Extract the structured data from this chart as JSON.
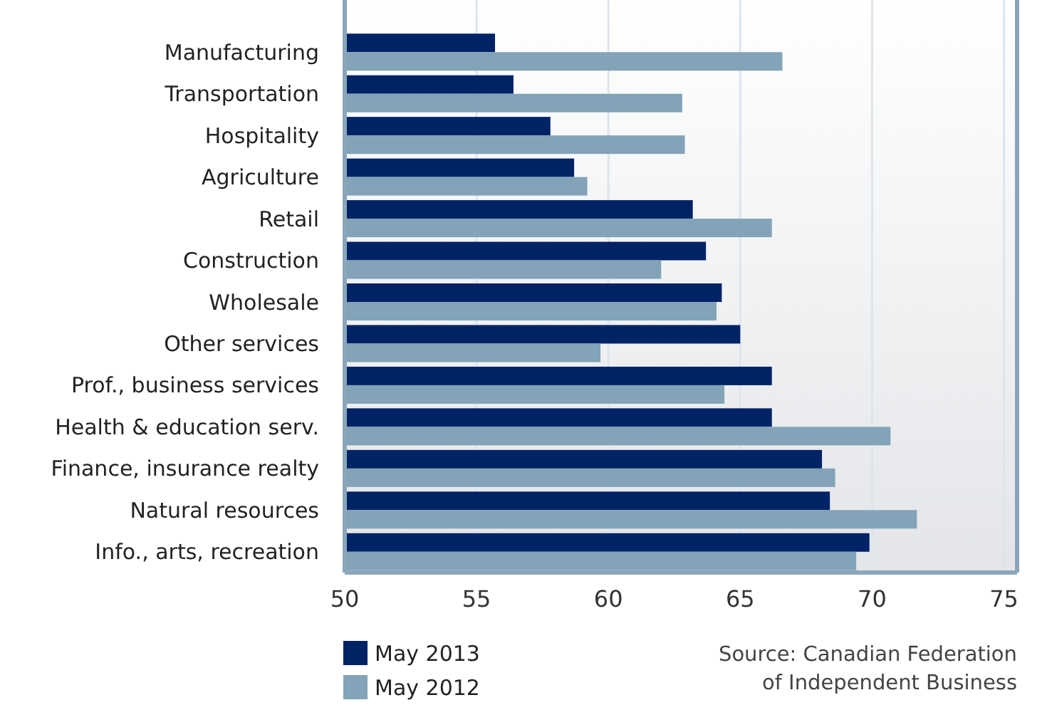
{
  "chart_data": {
    "type": "bar",
    "orientation": "horizontal",
    "categories": [
      "Manufacturing",
      "Transportation",
      "Hospitality",
      "Agriculture",
      "Retail",
      "Construction",
      "Wholesale",
      "Other services",
      "Prof., business services",
      "Health & education serv.",
      "Finance, insurance realty",
      "Natural resources",
      "Info., arts, recreation"
    ],
    "series": [
      {
        "name": "May 2013",
        "color": "#002366",
        "values": [
          55.7,
          56.4,
          57.8,
          58.7,
          63.2,
          63.7,
          64.3,
          65.0,
          66.2,
          66.2,
          68.1,
          68.4,
          69.9
        ]
      },
      {
        "name": "May 2012",
        "color": "#82a3b8",
        "values": [
          66.6,
          62.8,
          62.9,
          59.2,
          66.2,
          62.0,
          64.1,
          59.7,
          64.4,
          70.7,
          68.6,
          71.7,
          69.4
        ]
      }
    ],
    "xlim": [
      50,
      75.5
    ],
    "xticks": [
      50,
      55,
      60,
      65,
      70,
      75
    ],
    "grid": "x",
    "legend": "bottom left",
    "annotations": [
      "Source: Canadian Federation\nof Independent Business"
    ]
  }
}
